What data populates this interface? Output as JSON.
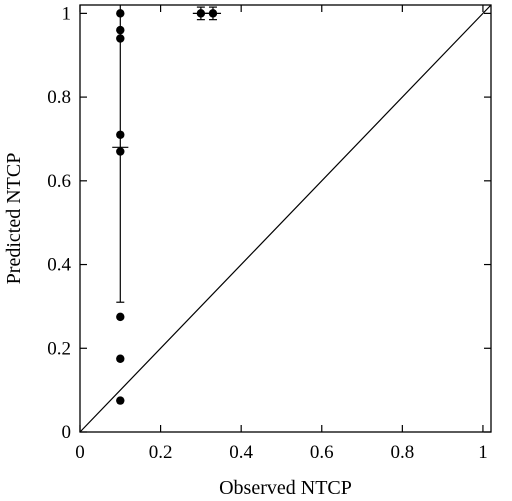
{
  "chart_data": {
    "type": "scatter",
    "xlabel": "Observed NTCP",
    "ylabel": "Predicted NTCP",
    "xlim": [
      0,
      1.02
    ],
    "ylim": [
      0,
      1.02
    ],
    "xticks": [
      {
        "value": 0,
        "label": "0"
      },
      {
        "value": 0.2,
        "label": "0.2"
      },
      {
        "value": 0.4,
        "label": "0.4"
      },
      {
        "value": 0.6,
        "label": "0.6"
      },
      {
        "value": 0.8,
        "label": "0.8"
      },
      {
        "value": 1.0,
        "label": "1"
      }
    ],
    "yticks": [
      {
        "value": 0,
        "label": "0"
      },
      {
        "value": 0.2,
        "label": "0.2"
      },
      {
        "value": 0.4,
        "label": "0.4"
      },
      {
        "value": 0.6,
        "label": "0.6"
      },
      {
        "value": 0.8,
        "label": "0.8"
      },
      {
        "value": 1.0,
        "label": "1"
      }
    ],
    "grid": false,
    "legend": "none",
    "points": [
      {
        "x": 0.1,
        "y": 1.0
      },
      {
        "x": 0.1,
        "y": 0.96
      },
      {
        "x": 0.1,
        "y": 0.94
      },
      {
        "x": 0.1,
        "y": 0.71
      },
      {
        "x": 0.1,
        "y": 0.67
      },
      {
        "x": 0.1,
        "y": 0.275
      },
      {
        "x": 0.1,
        "y": 0.175
      },
      {
        "x": 0.1,
        "y": 0.075
      },
      {
        "x": 0.3,
        "y": 1.0
      },
      {
        "x": 0.33,
        "y": 1.0
      }
    ],
    "error_bars": [
      {
        "x": 0.1,
        "y": 0.68,
        "y_low": 0.31,
        "y_high": 1.02,
        "x_err": 0.02
      },
      {
        "x": 0.3,
        "y": 1.0,
        "y_low": 0.985,
        "y_high": 1.015,
        "x_err": 0.02
      },
      {
        "x": 0.33,
        "y": 1.0,
        "y_low": 0.985,
        "y_high": 1.015,
        "x_err": 0.02
      }
    ],
    "reference_line": {
      "from": [
        0,
        0
      ],
      "to": [
        1.02,
        1.02
      ]
    },
    "colors": {
      "marks": "#000000",
      "background": "#ffffff"
    }
  }
}
